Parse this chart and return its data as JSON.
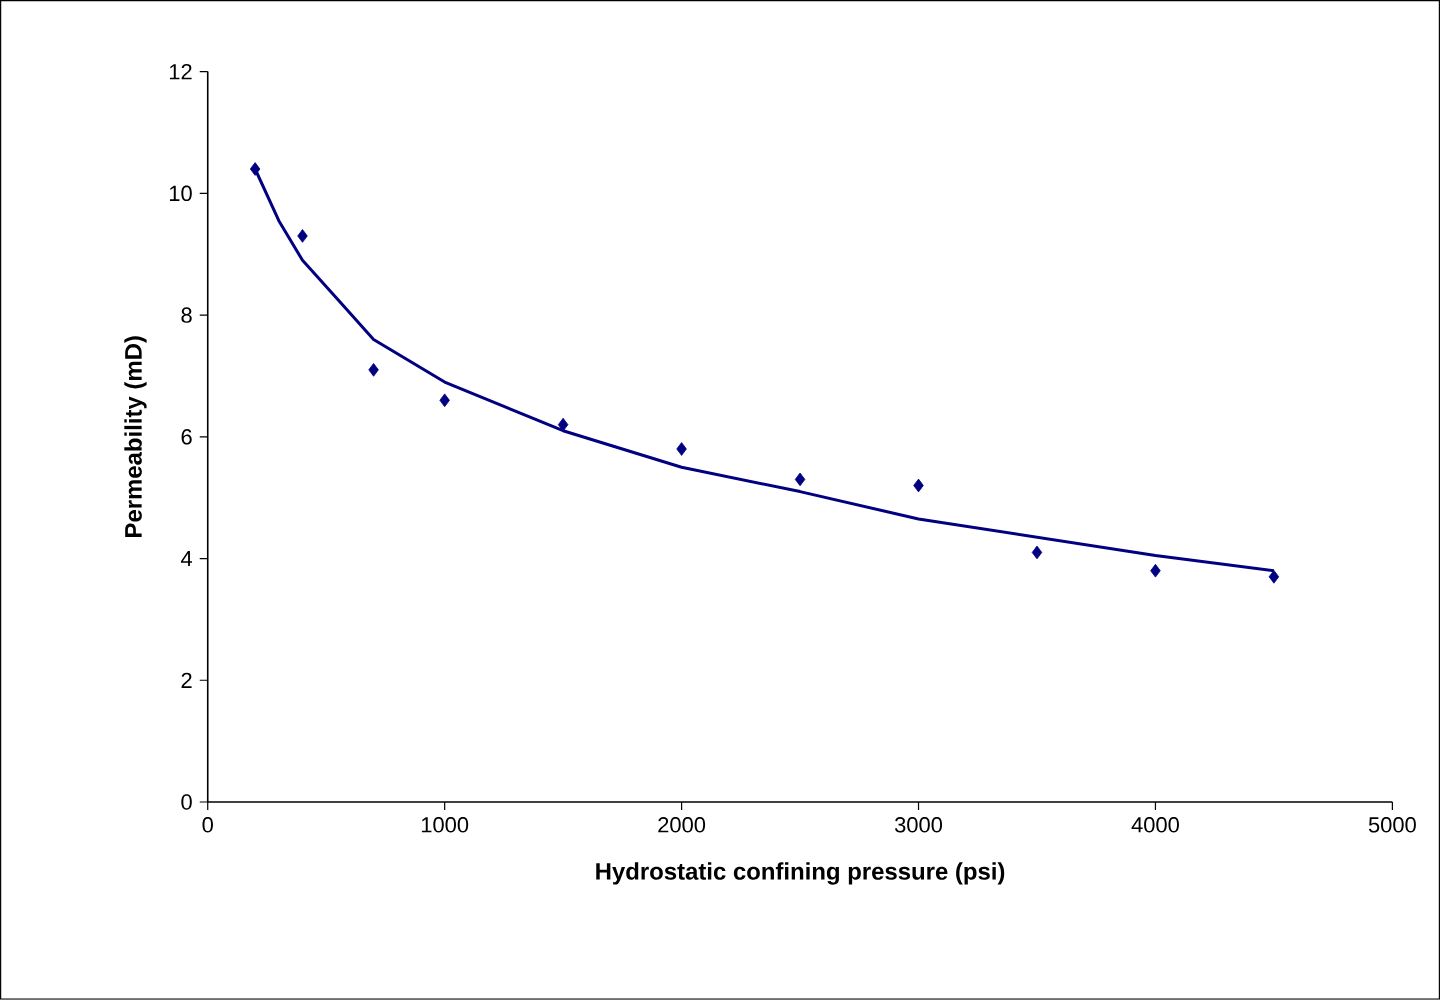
{
  "chart_data": {
    "type": "scatter",
    "xlabel": "Hydrostatic confining pressure (psi)",
    "ylabel": "Permeability (mD)",
    "xlim": [
      0,
      5000
    ],
    "xticks": [
      0,
      1000,
      2000,
      3000,
      4000,
      5000
    ],
    "ylim": [
      0,
      12
    ],
    "yticks": [
      0,
      2,
      4,
      6,
      8,
      10,
      12
    ],
    "grid": false,
    "series": [
      {
        "marker": "diamond",
        "color": "#000080",
        "x": [
          200,
          400,
          700,
          1000,
          1500,
          2000,
          2500,
          3000,
          3500,
          4000,
          4500
        ],
        "values": [
          10.4,
          9.3,
          7.1,
          6.6,
          6.2,
          5.8,
          5.3,
          5.2,
          4.1,
          3.8,
          3.7
        ]
      },
      {
        "type": "line",
        "marker": "none",
        "line_style": "solid",
        "color": "#000080",
        "x": [
          200,
          300,
          400,
          550,
          700,
          850,
          1000,
          1250,
          1500,
          1750,
          2000,
          2500,
          3000,
          3500,
          4000,
          4500
        ],
        "values": [
          10.4,
          9.55,
          8.9,
          8.25,
          7.6,
          7.25,
          6.9,
          6.5,
          6.1,
          5.8,
          5.5,
          5.1,
          4.65,
          4.35,
          4.05,
          3.8
        ]
      }
    ]
  }
}
